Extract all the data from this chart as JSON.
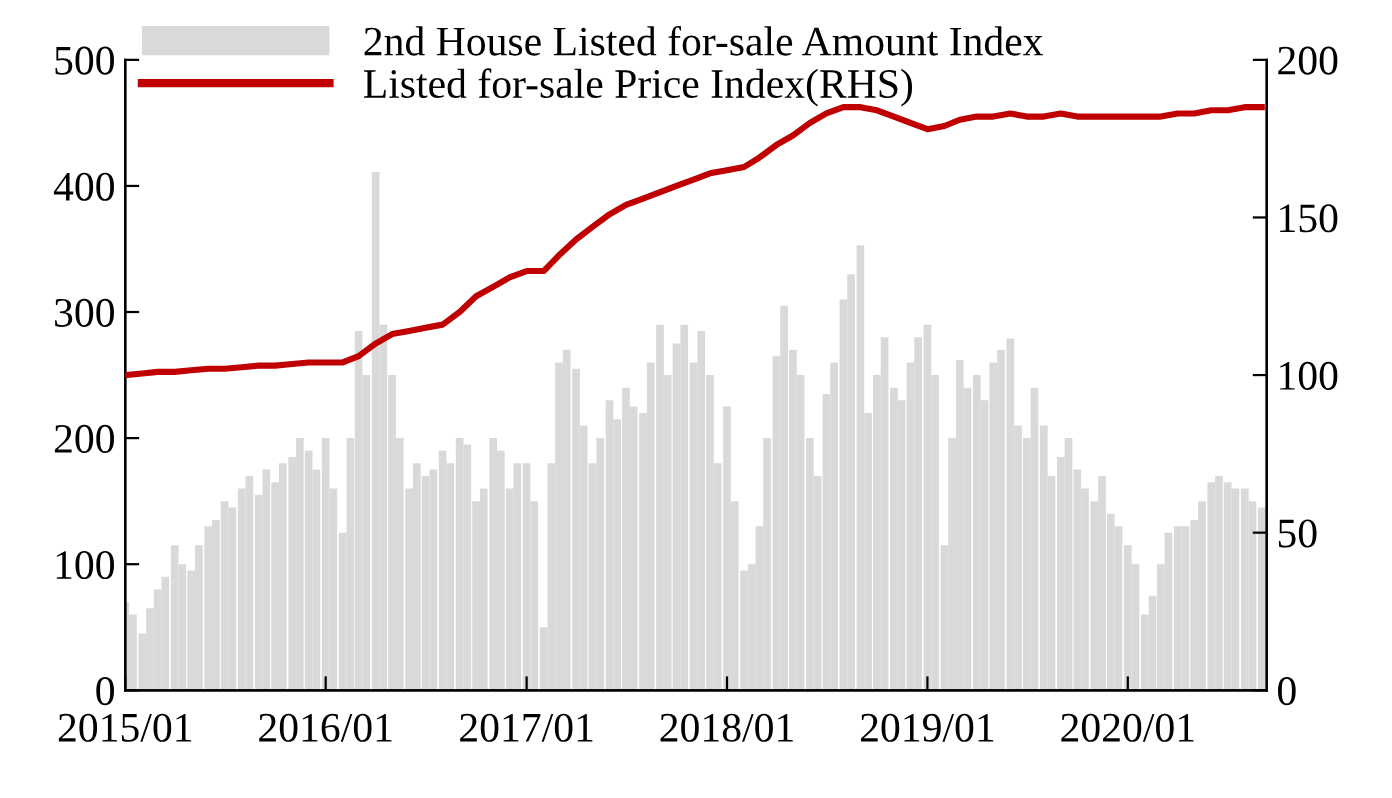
{
  "chart_data": {
    "type": "bar",
    "xlim": [
      "2015-01-01",
      "2020-09-10"
    ],
    "xticks": [
      {
        "value": "2015-01-01",
        "label": "2015/01"
      },
      {
        "value": "2016-01-01",
        "label": "2016/01"
      },
      {
        "value": "2017-01-01",
        "label": "2017/01"
      },
      {
        "value": "2018-01-01",
        "label": "2018/01"
      },
      {
        "value": "2019-01-01",
        "label": "2019/01"
      },
      {
        "value": "2020-01-01",
        "label": "2020/01"
      }
    ],
    "ylim": [
      0,
      500
    ],
    "yticks": [
      0,
      100,
      200,
      300,
      400,
      500
    ],
    "y2lim": [
      0,
      200
    ],
    "y2ticks": [
      0,
      50,
      100,
      150,
      200
    ],
    "grid": false,
    "legend": "top left",
    "series": [
      {
        "name": "2nd House Listed for-sale Amount Index",
        "color": "#d9d9d9",
        "x": [
          "2015-01-01",
          "2015-01-15",
          "2015-02-01",
          "2015-02-15",
          "2015-03-01",
          "2015-03-15",
          "2015-04-01",
          "2015-04-15",
          "2015-05-01",
          "2015-05-15",
          "2015-06-01",
          "2015-06-15",
          "2015-07-01",
          "2015-07-15",
          "2015-08-01",
          "2015-08-15",
          "2015-09-01",
          "2015-09-15",
          "2015-10-01",
          "2015-10-15",
          "2015-11-01",
          "2015-11-15",
          "2015-12-01",
          "2015-12-15",
          "2016-01-01",
          "2016-01-15",
          "2016-02-01",
          "2016-02-15",
          "2016-03-01",
          "2016-03-15",
          "2016-04-01",
          "2016-04-15",
          "2016-05-01",
          "2016-05-15",
          "2016-06-01",
          "2016-06-15",
          "2016-07-01",
          "2016-07-15",
          "2016-08-01",
          "2016-08-15",
          "2016-09-01",
          "2016-09-15",
          "2016-10-01",
          "2016-10-15",
          "2016-11-01",
          "2016-11-15",
          "2016-12-01",
          "2016-12-15",
          "2017-01-01",
          "2017-01-15",
          "2017-02-01",
          "2017-02-15",
          "2017-03-01",
          "2017-03-15",
          "2017-04-01",
          "2017-04-15",
          "2017-05-01",
          "2017-05-15",
          "2017-06-01",
          "2017-06-15",
          "2017-07-01",
          "2017-07-15",
          "2017-08-01",
          "2017-08-15",
          "2017-09-01",
          "2017-09-15",
          "2017-10-01",
          "2017-10-15",
          "2017-11-01",
          "2017-11-15",
          "2017-12-01",
          "2017-12-15",
          "2018-01-01",
          "2018-01-15",
          "2018-02-01",
          "2018-02-15",
          "2018-03-01",
          "2018-03-15",
          "2018-04-01",
          "2018-04-15",
          "2018-05-01",
          "2018-05-15",
          "2018-06-01",
          "2018-06-15",
          "2018-07-01",
          "2018-07-15",
          "2018-08-01",
          "2018-08-15",
          "2018-09-01",
          "2018-09-15",
          "2018-10-01",
          "2018-10-15",
          "2018-11-01",
          "2018-11-15",
          "2018-12-01",
          "2018-12-15",
          "2019-01-01",
          "2019-01-15",
          "2019-02-01",
          "2019-02-15",
          "2019-03-01",
          "2019-03-15",
          "2019-04-01",
          "2019-04-15",
          "2019-05-01",
          "2019-05-15",
          "2019-06-01",
          "2019-06-15",
          "2019-07-01",
          "2019-07-15",
          "2019-08-01",
          "2019-08-15",
          "2019-09-01",
          "2019-09-15",
          "2019-10-01",
          "2019-10-15",
          "2019-11-01",
          "2019-11-15",
          "2019-12-01",
          "2019-12-15",
          "2020-01-01",
          "2020-01-15",
          "2020-02-01",
          "2020-02-15",
          "2020-03-01",
          "2020-03-15",
          "2020-04-01",
          "2020-04-15",
          "2020-05-01",
          "2020-05-15",
          "2020-06-01",
          "2020-06-15",
          "2020-07-01",
          "2020-07-15",
          "2020-08-01",
          "2020-08-15",
          "2020-09-01"
        ],
        "values": [
          70,
          60,
          45,
          65,
          80,
          90,
          115,
          100,
          95,
          115,
          130,
          135,
          150,
          145,
          160,
          170,
          155,
          175,
          165,
          180,
          185,
          200,
          190,
          175,
          200,
          160,
          125,
          200,
          285,
          250,
          411,
          290,
          250,
          200,
          160,
          180,
          170,
          175,
          190,
          180,
          200,
          195,
          150,
          160,
          200,
          190,
          160,
          180,
          180,
          150,
          50,
          180,
          260,
          270,
          255,
          210,
          180,
          200,
          230,
          215,
          240,
          225,
          220,
          260,
          290,
          250,
          275,
          290,
          260,
          285,
          250,
          180,
          225,
          150,
          95,
          100,
          130,
          200,
          265,
          305,
          270,
          250,
          200,
          170,
          235,
          260,
          310,
          330,
          353,
          220,
          250,
          280,
          240,
          230,
          260,
          280,
          290,
          250,
          115,
          200,
          262,
          240,
          250,
          230,
          260,
          270,
          279,
          210,
          200,
          240,
          210,
          170,
          185,
          200,
          175,
          160,
          150,
          170,
          140,
          130,
          115,
          100,
          60,
          75,
          100,
          125,
          130,
          130,
          135,
          150,
          165,
          170,
          165,
          160,
          160,
          150,
          145
        ]
      },
      {
        "name": "Listed for-sale Price Index(RHS)",
        "type": "line",
        "axis": "y2",
        "color": "#c00000",
        "x": [
          "2015-01-01",
          "2015-02-01",
          "2015-03-01",
          "2015-04-01",
          "2015-05-01",
          "2015-06-01",
          "2015-07-01",
          "2015-08-01",
          "2015-09-01",
          "2015-10-01",
          "2015-11-01",
          "2015-12-01",
          "2016-01-01",
          "2016-02-01",
          "2016-03-01",
          "2016-04-01",
          "2016-05-01",
          "2016-06-01",
          "2016-07-01",
          "2016-08-01",
          "2016-09-01",
          "2016-10-01",
          "2016-11-01",
          "2016-12-01",
          "2017-01-01",
          "2017-02-01",
          "2017-03-01",
          "2017-04-01",
          "2017-05-01",
          "2017-06-01",
          "2017-07-01",
          "2017-08-01",
          "2017-09-01",
          "2017-10-01",
          "2017-11-01",
          "2017-12-01",
          "2018-01-01",
          "2018-02-01",
          "2018-03-01",
          "2018-04-01",
          "2018-05-01",
          "2018-06-01",
          "2018-07-01",
          "2018-08-01",
          "2018-09-01",
          "2018-10-01",
          "2018-11-01",
          "2018-12-01",
          "2019-01-01",
          "2019-02-01",
          "2019-03-01",
          "2019-04-01",
          "2019-05-01",
          "2019-06-01",
          "2019-07-01",
          "2019-08-01",
          "2019-09-01",
          "2019-10-01",
          "2019-11-01",
          "2019-12-01",
          "2020-01-01",
          "2020-02-01",
          "2020-03-01",
          "2020-04-01",
          "2020-05-01",
          "2020-06-01",
          "2020-07-01",
          "2020-08-01",
          "2020-09-01"
        ],
        "values": [
          100,
          100.5,
          101,
          101,
          101.5,
          102,
          102,
          102.5,
          103,
          103,
          103.5,
          104,
          104,
          104,
          106,
          110,
          113,
          114,
          115,
          116,
          120,
          125,
          128,
          131,
          133,
          133,
          138,
          143,
          147,
          151,
          154,
          156,
          158,
          160,
          162,
          164,
          165,
          166,
          169,
          173,
          176,
          180,
          183,
          185,
          185,
          184,
          182,
          180,
          178,
          179,
          181,
          182,
          182,
          183,
          182,
          182,
          183,
          182,
          182,
          182,
          182,
          182,
          182,
          183,
          183,
          184,
          184,
          185,
          185
        ]
      }
    ]
  }
}
